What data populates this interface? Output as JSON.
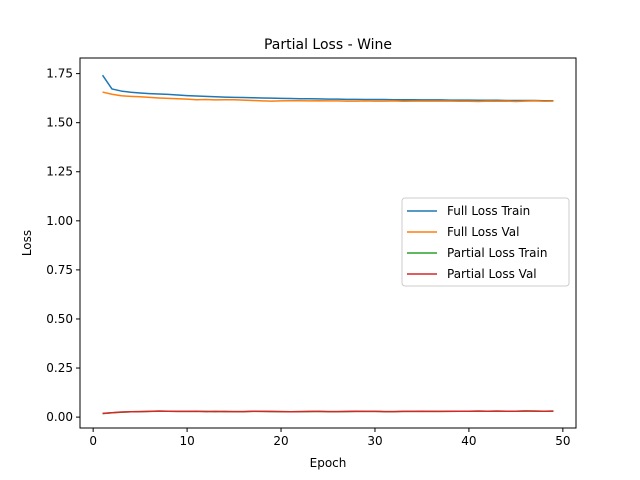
{
  "chart_data": {
    "type": "line",
    "title": "Partial Loss - Wine",
    "xlabel": "Epoch",
    "ylabel": "Loss",
    "xlim": [
      -1.4,
      51.4
    ],
    "ylim": [
      -0.0555,
      1.8295
    ],
    "xticks": [
      0,
      10,
      20,
      30,
      40,
      50
    ],
    "xtick_labels": [
      "0",
      "10",
      "20",
      "30",
      "40",
      "50"
    ],
    "yticks": [
      0.0,
      0.25,
      0.5,
      0.75,
      1.0,
      1.25,
      1.5,
      1.75
    ],
    "ytick_labels": [
      "0.00",
      "0.25",
      "0.50",
      "0.75",
      "1.00",
      "1.25",
      "1.50",
      "1.75"
    ],
    "grid": false,
    "legend_position": "center-right",
    "x": [
      1,
      2,
      3,
      4,
      5,
      6,
      7,
      8,
      9,
      10,
      11,
      12,
      13,
      14,
      15,
      16,
      17,
      18,
      19,
      20,
      21,
      22,
      23,
      24,
      25,
      26,
      27,
      28,
      29,
      30,
      31,
      32,
      33,
      34,
      35,
      36,
      37,
      38,
      39,
      40,
      41,
      42,
      43,
      44,
      45,
      46,
      47,
      48,
      49
    ],
    "series": [
      {
        "name": "Full Loss Train",
        "color": "#1f77b4",
        "values": [
          1.742,
          1.672,
          1.661,
          1.655,
          1.651,
          1.648,
          1.646,
          1.644,
          1.641,
          1.638,
          1.636,
          1.634,
          1.632,
          1.63,
          1.629,
          1.628,
          1.627,
          1.626,
          1.625,
          1.624,
          1.623,
          1.622,
          1.622,
          1.621,
          1.62,
          1.62,
          1.619,
          1.619,
          1.618,
          1.618,
          1.618,
          1.617,
          1.617,
          1.617,
          1.616,
          1.616,
          1.616,
          1.615,
          1.615,
          1.615,
          1.614,
          1.614,
          1.614,
          1.613,
          1.613,
          1.613,
          1.613,
          1.612,
          1.612
        ]
      },
      {
        "name": "Full Loss Val",
        "color": "#ff7f0e",
        "values": [
          1.656,
          1.645,
          1.637,
          1.634,
          1.632,
          1.629,
          1.626,
          1.624,
          1.622,
          1.62,
          1.617,
          1.618,
          1.616,
          1.617,
          1.617,
          1.615,
          1.613,
          1.611,
          1.61,
          1.611,
          1.612,
          1.612,
          1.611,
          1.612,
          1.611,
          1.611,
          1.61,
          1.61,
          1.611,
          1.61,
          1.61,
          1.611,
          1.609,
          1.61,
          1.61,
          1.61,
          1.61,
          1.61,
          1.609,
          1.609,
          1.608,
          1.61,
          1.609,
          1.61,
          1.608,
          1.61,
          1.611,
          1.609,
          1.61
        ]
      },
      {
        "name": "Partial Loss Train",
        "color": "#2ca02c",
        "values": [
          0.018,
          0.022,
          0.025,
          0.027,
          0.028,
          0.029,
          0.03,
          0.03,
          0.029,
          0.029,
          0.029,
          0.029,
          0.028,
          0.029,
          0.028,
          0.028,
          0.029,
          0.029,
          0.028,
          0.028,
          0.027,
          0.028,
          0.028,
          0.029,
          0.028,
          0.028,
          0.028,
          0.029,
          0.029,
          0.029,
          0.028,
          0.028,
          0.029,
          0.029,
          0.029,
          0.03,
          0.029,
          0.029,
          0.03,
          0.03,
          0.03,
          0.03,
          0.03,
          0.03,
          0.03,
          0.031,
          0.03,
          0.03,
          0.03
        ]
      },
      {
        "name": "Partial Loss Val",
        "color": "#d62728",
        "values": [
          0.019,
          0.022,
          0.026,
          0.027,
          0.028,
          0.029,
          0.031,
          0.03,
          0.029,
          0.029,
          0.03,
          0.028,
          0.029,
          0.028,
          0.028,
          0.028,
          0.03,
          0.029,
          0.029,
          0.028,
          0.027,
          0.028,
          0.029,
          0.029,
          0.028,
          0.028,
          0.029,
          0.03,
          0.029,
          0.029,
          0.028,
          0.028,
          0.029,
          0.029,
          0.03,
          0.029,
          0.029,
          0.03,
          0.03,
          0.03,
          0.031,
          0.03,
          0.031,
          0.03,
          0.03,
          0.031,
          0.031,
          0.03,
          0.031
        ]
      }
    ]
  }
}
